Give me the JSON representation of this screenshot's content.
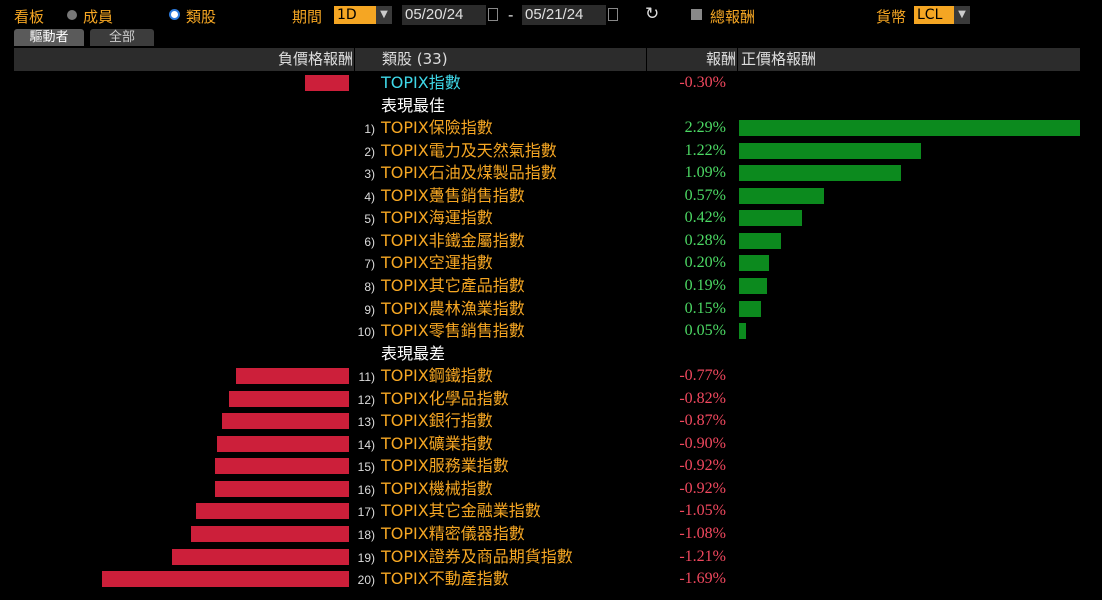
{
  "toolbar": {
    "board_label": "看板",
    "radio_members": "成員",
    "radio_sectors": "類股",
    "period_label": "期間",
    "period_value": "1D",
    "date_from": "05/20/24",
    "date_sep": "-",
    "date_to": "05/21/24",
    "total_return_label": "總報酬",
    "currency_label": "貨幣",
    "currency_value": "LCL"
  },
  "tabs": [
    {
      "label": "驅動者",
      "active": true
    },
    {
      "label": "全部",
      "active": false
    }
  ],
  "header": {
    "neg_return": "負價格報酬",
    "sector": "類股 (33)",
    "return": "報酬",
    "pos_return": "正價格報酬"
  },
  "index_row": {
    "name": "TOPIX指數",
    "value": -0.3,
    "display": "-0.30%"
  },
  "sections": {
    "best": "表現最佳",
    "worst": "表現最差"
  },
  "best": [
    {
      "rank": "1)",
      "name": "TOPIX保險指數",
      "value": 2.29,
      "display": "2.29%"
    },
    {
      "rank": "2)",
      "name": "TOPIX電力及天然氣指數",
      "value": 1.22,
      "display": "1.22%"
    },
    {
      "rank": "3)",
      "name": "TOPIX石油及煤製品指數",
      "value": 1.09,
      "display": "1.09%"
    },
    {
      "rank": "4)",
      "name": "TOPIX躉售銷售指數",
      "value": 0.57,
      "display": "0.57%"
    },
    {
      "rank": "5)",
      "name": "TOPIX海運指數",
      "value": 0.42,
      "display": "0.42%"
    },
    {
      "rank": "6)",
      "name": "TOPIX非鐵金屬指數",
      "value": 0.28,
      "display": "0.28%"
    },
    {
      "rank": "7)",
      "name": "TOPIX空運指數",
      "value": 0.2,
      "display": "0.20%"
    },
    {
      "rank": "8)",
      "name": "TOPIX其它產品指數",
      "value": 0.19,
      "display": "0.19%"
    },
    {
      "rank": "9)",
      "name": "TOPIX農林漁業指數",
      "value": 0.15,
      "display": "0.15%"
    },
    {
      "rank": "10)",
      "name": "TOPIX零售銷售指數",
      "value": 0.05,
      "display": "0.05%"
    }
  ],
  "worst": [
    {
      "rank": "11)",
      "name": "TOPIX鋼鐵指數",
      "value": -0.77,
      "display": "-0.77%"
    },
    {
      "rank": "12)",
      "name": "TOPIX化學品指數",
      "value": -0.82,
      "display": "-0.82%"
    },
    {
      "rank": "13)",
      "name": "TOPIX銀行指數",
      "value": -0.87,
      "display": "-0.87%"
    },
    {
      "rank": "14)",
      "name": "TOPIX礦業指數",
      "value": -0.9,
      "display": "-0.90%"
    },
    {
      "rank": "15)",
      "name": "TOPIX服務業指數",
      "value": -0.92,
      "display": "-0.92%"
    },
    {
      "rank": "16)",
      "name": "TOPIX機械指數",
      "value": -0.92,
      "display": "-0.92%"
    },
    {
      "rank": "17)",
      "name": "TOPIX其它金融業指數",
      "value": -1.05,
      "display": "-1.05%"
    },
    {
      "rank": "18)",
      "name": "TOPIX精密儀器指數",
      "value": -1.08,
      "display": "-1.08%"
    },
    {
      "rank": "19)",
      "name": "TOPIX證券及商品期貨指數",
      "value": -1.21,
      "display": "-1.21%"
    },
    {
      "rank": "20)",
      "name": "TOPIX不動產指數",
      "value": -1.69,
      "display": "-1.69%"
    }
  ],
  "colors": {
    "positive_bar": "#0c8a1e",
    "negative_bar": "#cc1f3a",
    "positive_text": "#4cd964",
    "negative_text": "#f0485e",
    "accent": "#f5a623"
  }
}
